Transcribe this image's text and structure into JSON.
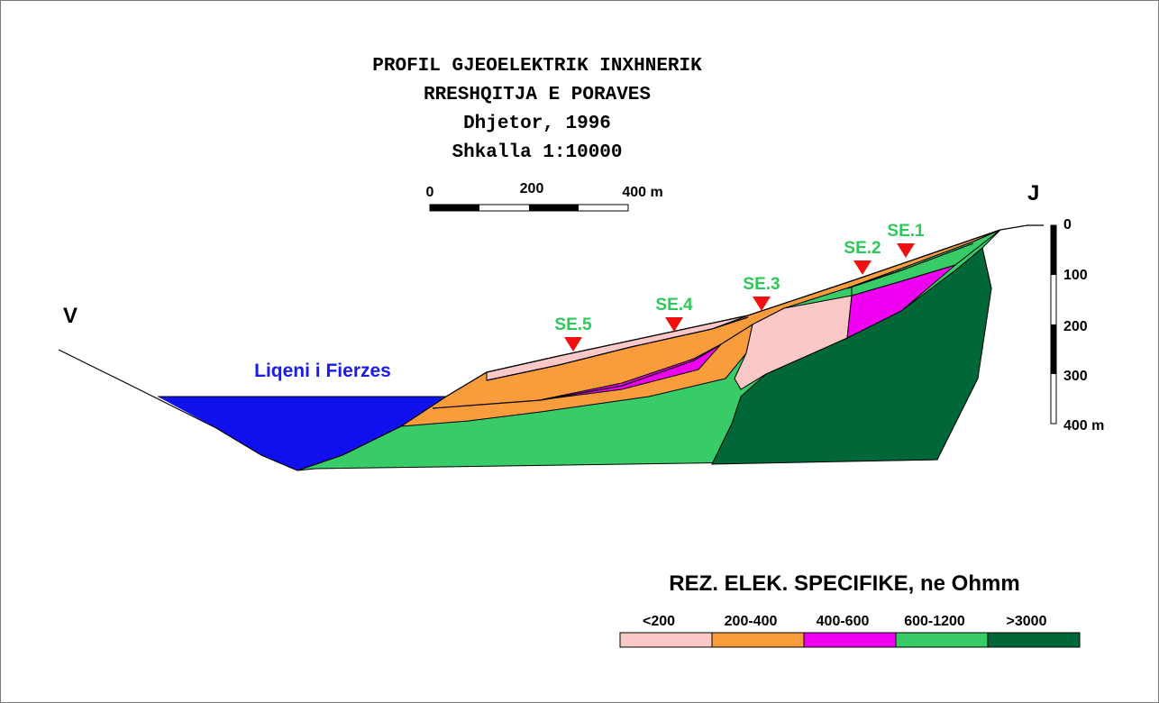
{
  "header": {
    "lines": [
      "PROFIL GJEOELEKTRIK INXHNERIK",
      "RRESHQITJA E PORAVES",
      "Dhjetor, 1996",
      "Shkalla 1:10000"
    ]
  },
  "scale_bar": {
    "labels": [
      "0",
      "200",
      "400 m"
    ]
  },
  "depth_scale": {
    "labels": [
      "0",
      "100",
      "200",
      "300",
      "400 m"
    ]
  },
  "directions": {
    "left": "V",
    "right": "J"
  },
  "lake": {
    "label": "Liqeni i Fierzes"
  },
  "stations": [
    "SE.1",
    "SE.2",
    "SE.3",
    "SE.4",
    "SE.5"
  ],
  "legend": {
    "title": "REZ. ELEK. SPECIFIKE, ne Ohmm",
    "items": [
      {
        "label": "<200",
        "color": "#fbc8c8"
      },
      {
        "label": "200-400",
        "color": "#f99c3c"
      },
      {
        "label": "400-600",
        "color": "#f000f0"
      },
      {
        "label": "600-1200",
        "color": "#38cc68"
      },
      {
        "label": ">3000",
        "color": "#006838"
      }
    ]
  }
}
